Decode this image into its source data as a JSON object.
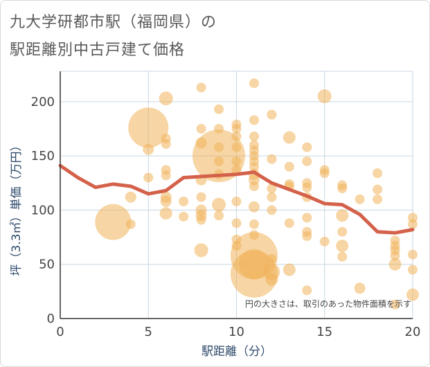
{
  "title_line1": "九大学研都市駅（福岡県）の",
  "title_line2": "駅距離別中古戸建て価格",
  "chart_data": {
    "type": "scatter",
    "xlabel": "駅距離（分）",
    "ylabel": "坪（3.3㎡）単価（万円）",
    "xlim": [
      0,
      20
    ],
    "ylim": [
      0,
      228
    ],
    "xticks": [
      0,
      5,
      10,
      15,
      20
    ],
    "yticks": [
      0,
      50,
      100,
      150,
      200
    ],
    "grid": true,
    "note": "円の大きさは、取引のあった物件面積を示す",
    "colors": {
      "bubble": "#f0b25a",
      "line": "#d4614a",
      "grid": "#c7d6e2",
      "axis": "#333333"
    },
    "trend_line": {
      "x": [
        0,
        1,
        2,
        3,
        4,
        5,
        6,
        7,
        8,
        9,
        10,
        11,
        12,
        13,
        14,
        15,
        16,
        17,
        18,
        19,
        20
      ],
      "y": [
        141,
        130,
        121,
        124,
        122,
        115,
        118,
        130,
        131,
        132,
        133,
        135,
        125,
        119,
        113,
        106,
        105,
        96,
        80,
        79,
        82
      ]
    },
    "bubbles": [
      {
        "x": 3,
        "y": 89,
        "r": 26
      },
      {
        "x": 4,
        "y": 112,
        "r": 8
      },
      {
        "x": 4,
        "y": 87,
        "r": 7
      },
      {
        "x": 5,
        "y": 176,
        "r": 29
      },
      {
        "x": 5,
        "y": 156,
        "r": 8
      },
      {
        "x": 5,
        "y": 130,
        "r": 7
      },
      {
        "x": 6,
        "y": 203,
        "r": 10
      },
      {
        "x": 6,
        "y": 166,
        "r": 7
      },
      {
        "x": 6,
        "y": 161,
        "r": 7
      },
      {
        "x": 6,
        "y": 137,
        "r": 7
      },
      {
        "x": 6,
        "y": 132,
        "r": 7
      },
      {
        "x": 6,
        "y": 112,
        "r": 8
      },
      {
        "x": 6,
        "y": 108,
        "r": 8
      },
      {
        "x": 6,
        "y": 97,
        "r": 9
      },
      {
        "x": 7,
        "y": 108,
        "r": 7
      },
      {
        "x": 7,
        "y": 94,
        "r": 7
      },
      {
        "x": 8,
        "y": 213,
        "r": 7
      },
      {
        "x": 8,
        "y": 175,
        "r": 7
      },
      {
        "x": 8,
        "y": 162,
        "r": 8
      },
      {
        "x": 8,
        "y": 128,
        "r": 8
      },
      {
        "x": 8,
        "y": 112,
        "r": 7
      },
      {
        "x": 8,
        "y": 100,
        "r": 8
      },
      {
        "x": 8,
        "y": 95,
        "r": 8
      },
      {
        "x": 8,
        "y": 91,
        "r": 7
      },
      {
        "x": 8,
        "y": 63,
        "r": 10
      },
      {
        "x": 9,
        "y": 193,
        "r": 7
      },
      {
        "x": 9,
        "y": 175,
        "r": 7
      },
      {
        "x": 9,
        "y": 158,
        "r": 7
      },
      {
        "x": 9,
        "y": 150,
        "r": 38
      },
      {
        "x": 9,
        "y": 145,
        "r": 7
      },
      {
        "x": 9,
        "y": 133,
        "r": 7
      },
      {
        "x": 9,
        "y": 105,
        "r": 10
      },
      {
        "x": 9,
        "y": 95,
        "r": 7
      },
      {
        "x": 10,
        "y": 179,
        "r": 7
      },
      {
        "x": 10,
        "y": 175,
        "r": 7
      },
      {
        "x": 10,
        "y": 168,
        "r": 7
      },
      {
        "x": 10,
        "y": 158,
        "r": 7
      },
      {
        "x": 10,
        "y": 145,
        "r": 7
      },
      {
        "x": 10,
        "y": 137,
        "r": 7
      },
      {
        "x": 10,
        "y": 108,
        "r": 7
      },
      {
        "x": 10,
        "y": 88,
        "r": 7
      },
      {
        "x": 10,
        "y": 73,
        "r": 7
      },
      {
        "x": 10,
        "y": 67,
        "r": 7
      },
      {
        "x": 11,
        "y": 217,
        "r": 7
      },
      {
        "x": 11,
        "y": 183,
        "r": 7
      },
      {
        "x": 11,
        "y": 168,
        "r": 7
      },
      {
        "x": 11,
        "y": 160,
        "r": 7
      },
      {
        "x": 11,
        "y": 155,
        "r": 7
      },
      {
        "x": 11,
        "y": 150,
        "r": 7
      },
      {
        "x": 11,
        "y": 145,
        "r": 7
      },
      {
        "x": 11,
        "y": 140,
        "r": 7
      },
      {
        "x": 11,
        "y": 133,
        "r": 8
      },
      {
        "x": 11,
        "y": 128,
        "r": 8
      },
      {
        "x": 11,
        "y": 122,
        "r": 7
      },
      {
        "x": 11,
        "y": 103,
        "r": 8
      },
      {
        "x": 11,
        "y": 87,
        "r": 7
      },
      {
        "x": 11,
        "y": 77,
        "r": 7
      },
      {
        "x": 11,
        "y": 58,
        "r": 34
      },
      {
        "x": 11,
        "y": 50,
        "r": 22
      },
      {
        "x": 11,
        "y": 41,
        "r": 34
      },
      {
        "x": 12,
        "y": 188,
        "r": 7
      },
      {
        "x": 12,
        "y": 147,
        "r": 7
      },
      {
        "x": 12,
        "y": 120,
        "r": 7
      },
      {
        "x": 12,
        "y": 112,
        "r": 7
      },
      {
        "x": 12,
        "y": 100,
        "r": 7
      },
      {
        "x": 12,
        "y": 55,
        "r": 7
      },
      {
        "x": 12,
        "y": 43,
        "r": 12
      },
      {
        "x": 12,
        "y": 36,
        "r": 9
      },
      {
        "x": 13,
        "y": 167,
        "r": 9
      },
      {
        "x": 13,
        "y": 140,
        "r": 7
      },
      {
        "x": 13,
        "y": 124,
        "r": 7
      },
      {
        "x": 13,
        "y": 122,
        "r": 7
      },
      {
        "x": 13,
        "y": 88,
        "r": 7
      },
      {
        "x": 13,
        "y": 45,
        "r": 9
      },
      {
        "x": 14,
        "y": 158,
        "r": 7
      },
      {
        "x": 14,
        "y": 145,
        "r": 7
      },
      {
        "x": 14,
        "y": 125,
        "r": 7
      },
      {
        "x": 14,
        "y": 121,
        "r": 7
      },
      {
        "x": 14,
        "y": 112,
        "r": 7
      },
      {
        "x": 14,
        "y": 93,
        "r": 7
      },
      {
        "x": 14,
        "y": 80,
        "r": 7
      },
      {
        "x": 14,
        "y": 76,
        "r": 7
      },
      {
        "x": 14,
        "y": 26,
        "r": 7
      },
      {
        "x": 15,
        "y": 205,
        "r": 10
      },
      {
        "x": 15,
        "y": 137,
        "r": 7
      },
      {
        "x": 15,
        "y": 134,
        "r": 7
      },
      {
        "x": 15,
        "y": 71,
        "r": 7
      },
      {
        "x": 16,
        "y": 123,
        "r": 7
      },
      {
        "x": 16,
        "y": 120,
        "r": 7
      },
      {
        "x": 16,
        "y": 95,
        "r": 9
      },
      {
        "x": 16,
        "y": 80,
        "r": 7
      },
      {
        "x": 16,
        "y": 67,
        "r": 9
      },
      {
        "x": 16,
        "y": 57,
        "r": 7
      },
      {
        "x": 17,
        "y": 110,
        "r": 7
      },
      {
        "x": 17,
        "y": 28,
        "r": 8
      },
      {
        "x": 18,
        "y": 134,
        "r": 7
      },
      {
        "x": 18,
        "y": 119,
        "r": 7
      },
      {
        "x": 18,
        "y": 110,
        "r": 7
      },
      {
        "x": 19,
        "y": 72,
        "r": 7
      },
      {
        "x": 19,
        "y": 67,
        "r": 7
      },
      {
        "x": 19,
        "y": 63,
        "r": 7
      },
      {
        "x": 19,
        "y": 58,
        "r": 7
      },
      {
        "x": 19,
        "y": 50,
        "r": 9
      },
      {
        "x": 19,
        "y": 13,
        "r": 7
      },
      {
        "x": 20,
        "y": 93,
        "r": 7
      },
      {
        "x": 20,
        "y": 87,
        "r": 7
      },
      {
        "x": 20,
        "y": 59,
        "r": 7
      },
      {
        "x": 20,
        "y": 45,
        "r": 7
      },
      {
        "x": 20,
        "y": 22,
        "r": 9
      }
    ]
  }
}
